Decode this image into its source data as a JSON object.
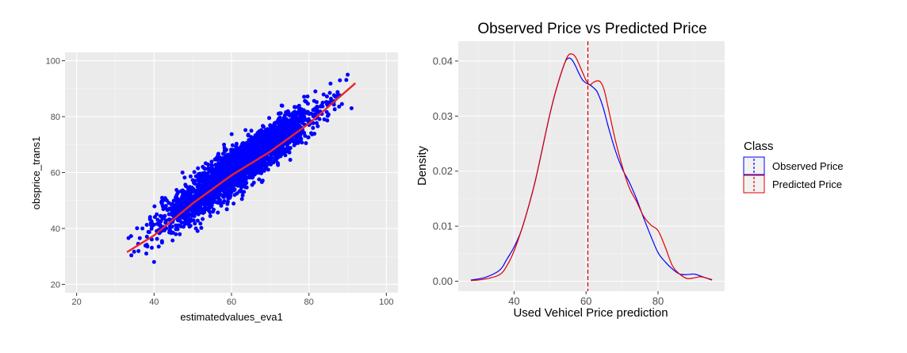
{
  "chart_data": [
    {
      "type": "scatter",
      "xlabel": "estimatedvalues_eva1",
      "ylabel": "obsprice_trans1",
      "xlim": [
        17,
        103
      ],
      "ylim": [
        17,
        103
      ],
      "x_ticks": [
        20,
        40,
        60,
        80,
        100
      ],
      "y_ticks": [
        20,
        40,
        60,
        80,
        100
      ],
      "grid": true,
      "colors": {
        "points": "#0000ff",
        "fit_line": "#e8262b",
        "panel": "#ebebeb"
      },
      "point_cloud": {
        "n_points": 3000,
        "x_range": [
          33,
          92
        ],
        "relationship": "y ≈ x with residual spread ±7",
        "outliers": [
          [
            37,
            40
          ],
          [
            38,
            31
          ],
          [
            40,
            28
          ],
          [
            88,
            93
          ],
          [
            90,
            95
          ],
          [
            91,
            83
          ]
        ]
      },
      "fit_line": {
        "x": [
          33,
          40,
          50,
          60,
          70,
          80,
          92
        ],
        "y": [
          31.5,
          37.5,
          49.0,
          59.0,
          67.5,
          77.5,
          92.0
        ]
      }
    },
    {
      "type": "line",
      "title": "Observed Price vs Predicted Price",
      "xlabel": "Used Vehicel Price prediction",
      "ylabel": "Density",
      "xlim": [
        24.5,
        98.5
      ],
      "ylim": [
        -0.0018,
        0.0436
      ],
      "x_ticks": [
        40,
        60,
        80
      ],
      "y_ticks": [
        0.0,
        0.01,
        0.02,
        0.03,
        0.04
      ],
      "y_tick_labels": [
        "0.00",
        "0.01",
        "0.02",
        "0.03",
        "0.04"
      ],
      "grid": true,
      "legend": {
        "title": "Class",
        "position": "right",
        "entries": [
          "Observed Price",
          "Predicted Price"
        ]
      },
      "vline": {
        "x": 60.5,
        "style": "dashed",
        "color": "#e00000"
      },
      "x": [
        28,
        32,
        36,
        38,
        40,
        42,
        44,
        46,
        48,
        50,
        52,
        54,
        55,
        56,
        57,
        58,
        59,
        60,
        61,
        62,
        63,
        64,
        65,
        66,
        68,
        70,
        72,
        74,
        76,
        78,
        80,
        82,
        84,
        86,
        88,
        90,
        92,
        95
      ],
      "series": [
        {
          "name": "Observed Price",
          "color": "#0000ff",
          "values": [
            0.0002,
            0.0007,
            0.002,
            0.004,
            0.0062,
            0.0092,
            0.0135,
            0.0185,
            0.0245,
            0.0305,
            0.0355,
            0.0395,
            0.0405,
            0.0403,
            0.0392,
            0.0378,
            0.0366,
            0.036,
            0.0357,
            0.0352,
            0.0345,
            0.033,
            0.031,
            0.0285,
            0.024,
            0.0205,
            0.018,
            0.015,
            0.0115,
            0.0082,
            0.0052,
            0.0035,
            0.0022,
            0.0013,
            0.0012,
            0.0013,
            0.0009,
            0.0002
          ]
        },
        {
          "name": "Predicted Price",
          "color": "#e00000",
          "values": [
            0.0001,
            0.0004,
            0.0012,
            0.0028,
            0.0055,
            0.0092,
            0.0135,
            0.0185,
            0.0245,
            0.0305,
            0.0355,
            0.0395,
            0.041,
            0.0413,
            0.0408,
            0.0395,
            0.038,
            0.0365,
            0.0357,
            0.0361,
            0.0364,
            0.0362,
            0.0348,
            0.032,
            0.026,
            0.021,
            0.017,
            0.0145,
            0.0118,
            0.0102,
            0.0092,
            0.0062,
            0.0028,
            0.0013,
            0.0005,
            0.0006,
            0.0008,
            0.0003
          ]
        }
      ]
    }
  ]
}
